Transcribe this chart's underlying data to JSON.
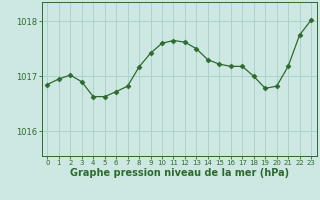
{
  "x": [
    0,
    1,
    2,
    3,
    4,
    5,
    6,
    7,
    8,
    9,
    10,
    11,
    12,
    13,
    14,
    15,
    16,
    17,
    18,
    19,
    20,
    21,
    22,
    23
  ],
  "y": [
    1016.85,
    1016.95,
    1017.02,
    1016.9,
    1016.63,
    1016.63,
    1016.72,
    1016.82,
    1017.17,
    1017.42,
    1017.6,
    1017.65,
    1017.62,
    1017.5,
    1017.3,
    1017.22,
    1017.18,
    1017.18,
    1017.0,
    1016.78,
    1016.82,
    1017.18,
    1017.75,
    1018.02
  ],
  "line_color": "#2d6a2d",
  "marker": "D",
  "marker_size": 2.5,
  "background_color": "#cde8e2",
  "grid_color": "#a8cfc8",
  "axes_color": "#2d6a2d",
  "xlabel": "Graphe pression niveau de la mer (hPa)",
  "xlabel_fontsize": 7,
  "ylabel_ticks": [
    1016,
    1017,
    1018
  ],
  "ylim": [
    1015.55,
    1018.35
  ],
  "xlim": [
    -0.5,
    23.5
  ],
  "tick_color": "#2d6a2d",
  "spine_color": "#2d6a2d"
}
